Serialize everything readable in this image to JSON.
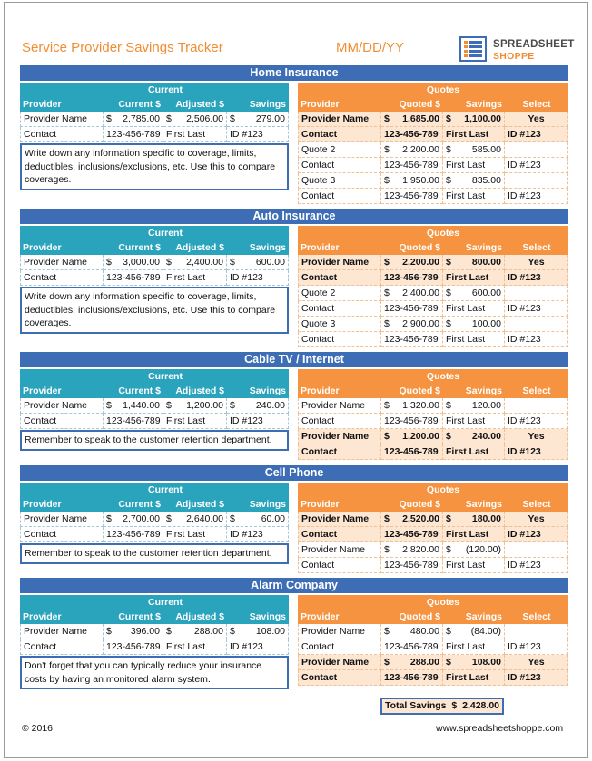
{
  "header": {
    "title": "Service Provider Savings Tracker",
    "date": "MM/DD/YY",
    "logo_line1": "SPREADSHEET",
    "logo_line2": "SHOPPE"
  },
  "labels": {
    "current": "Current",
    "quotes": "Quotes",
    "provider": "Provider",
    "current_cost": "Current $",
    "adjusted": "Adjusted $",
    "savings": "Savings",
    "quoted": "Quoted $",
    "select": "Select",
    "currency": "$"
  },
  "sections": [
    {
      "title": "Home Insurance",
      "current": {
        "provider": "Provider Name",
        "current": "2,785.00",
        "adjusted": "2,506.00",
        "savings": "279.00",
        "contact_label": "Contact",
        "phone": "123-456-789",
        "name": "First Last",
        "id": "ID #123"
      },
      "note": "Write down any information specific to coverage, limits, deductibles, inclusions/exclusions, etc.  Use this to compare coverages.",
      "quotes": [
        {
          "provider": "Provider Name",
          "quoted": "1,685.00",
          "savings": "1,100.00",
          "select": "Yes",
          "phone": "123-456-789",
          "name": "First Last",
          "id": "ID #123",
          "selected": true
        },
        {
          "provider": "Quote 2",
          "quoted": "2,200.00",
          "savings": "585.00",
          "select": "",
          "phone": "123-456-789",
          "name": "First Last",
          "id": "ID #123",
          "selected": false
        },
        {
          "provider": "Quote 3",
          "quoted": "1,950.00",
          "savings": "835.00",
          "select": "",
          "phone": "123-456-789",
          "name": "First Last",
          "id": "ID #123",
          "selected": false
        }
      ]
    },
    {
      "title": "Auto Insurance",
      "current": {
        "provider": "Provider Name",
        "current": "3,000.00",
        "adjusted": "2,400.00",
        "savings": "600.00",
        "contact_label": "Contact",
        "phone": "123-456-789",
        "name": "First Last",
        "id": "ID #123"
      },
      "note": "Write down any information specific to coverage, limits, deductibles, inclusions/exclusions, etc.  Use this to compare coverages.",
      "quotes": [
        {
          "provider": "Provider Name",
          "quoted": "2,200.00",
          "savings": "800.00",
          "select": "Yes",
          "phone": "123-456-789",
          "name": "First Last",
          "id": "ID #123",
          "selected": true
        },
        {
          "provider": "Quote 2",
          "quoted": "2,400.00",
          "savings": "600.00",
          "select": "",
          "phone": "123-456-789",
          "name": "First Last",
          "id": "ID #123",
          "selected": false
        },
        {
          "provider": "Quote 3",
          "quoted": "2,900.00",
          "savings": "100.00",
          "select": "",
          "phone": "123-456-789",
          "name": "First Last",
          "id": "ID #123",
          "selected": false
        }
      ]
    },
    {
      "title": "Cable TV / Internet",
      "current": {
        "provider": "Provider Name",
        "current": "1,440.00",
        "adjusted": "1,200.00",
        "savings": "240.00",
        "contact_label": "Contact",
        "phone": "123-456-789",
        "name": "First Last",
        "id": "ID #123"
      },
      "note": "Remember to speak to the customer retention department.",
      "quotes": [
        {
          "provider": "Provider Name",
          "quoted": "1,320.00",
          "savings": "120.00",
          "select": "",
          "phone": "123-456-789",
          "name": "First Last",
          "id": "ID #123",
          "selected": false
        },
        {
          "provider": "Provider Name",
          "quoted": "1,200.00",
          "savings": "240.00",
          "select": "Yes",
          "phone": "123-456-789",
          "name": "First Last",
          "id": "ID #123",
          "selected": true
        }
      ]
    },
    {
      "title": "Cell Phone",
      "current": {
        "provider": "Provider Name",
        "current": "2,700.00",
        "adjusted": "2,640.00",
        "savings": "60.00",
        "contact_label": "Contact",
        "phone": "123-456-789",
        "name": "First Last",
        "id": "ID #123"
      },
      "note": "Remember to speak to the customer retention department.",
      "quotes": [
        {
          "provider": "Provider Name",
          "quoted": "2,520.00",
          "savings": "180.00",
          "select": "Yes",
          "phone": "123-456-789",
          "name": "First Last",
          "id": "ID #123",
          "selected": true
        },
        {
          "provider": "Provider Name",
          "quoted": "2,820.00",
          "savings": "(120.00)",
          "select": "",
          "phone": "123-456-789",
          "name": "First Last",
          "id": "ID #123",
          "selected": false
        }
      ]
    },
    {
      "title": "Alarm Company",
      "current": {
        "provider": "Provider Name",
        "current": "396.00",
        "adjusted": "288.00",
        "savings": "108.00",
        "contact_label": "Contact",
        "phone": "123-456-789",
        "name": "First Last",
        "id": "ID #123"
      },
      "note": "Don't forget that you can typically reduce your insurance costs by having an monitored alarm system.",
      "quotes": [
        {
          "provider": "Provider Name",
          "quoted": "480.00",
          "savings": "(84.00)",
          "select": "",
          "phone": "123-456-789",
          "name": "First Last",
          "id": "ID #123",
          "selected": false
        },
        {
          "provider": "Provider Name",
          "quoted": "288.00",
          "savings": "108.00",
          "select": "Yes",
          "phone": "123-456-789",
          "name": "First Last",
          "id": "ID #123",
          "selected": true
        }
      ]
    }
  ],
  "total": {
    "label": "Total Savings",
    "currency": "$",
    "value": "2,428.00"
  },
  "footer": {
    "copyright": "© 2016",
    "website": "www.spreadsheetshoppe.com"
  },
  "colors": {
    "section_blue": "#3d6eb5",
    "teal": "#2aa3bd",
    "orange": "#f59340",
    "title_orange": "#f08d32",
    "selected_fill": "#fde6d2"
  }
}
